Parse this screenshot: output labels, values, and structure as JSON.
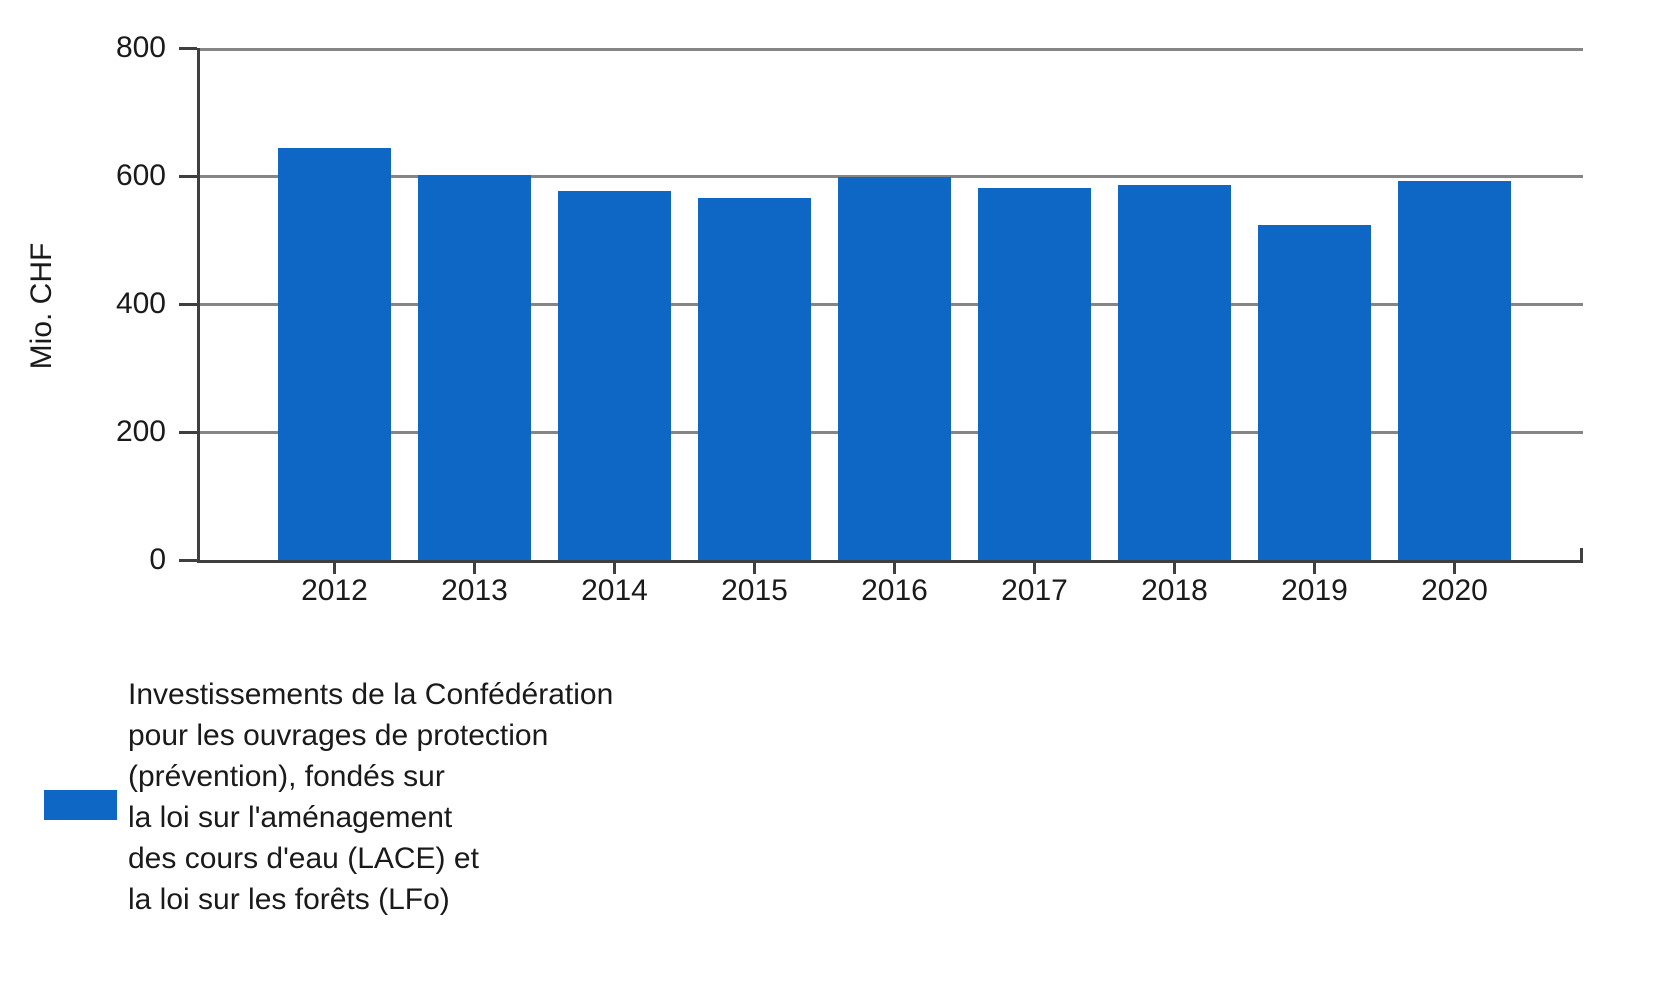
{
  "chart_data": {
    "type": "bar",
    "title": "",
    "xlabel": "",
    "ylabel": "Mio. CHF",
    "categories": [
      "2012",
      "2013",
      "2014",
      "2015",
      "2016",
      "2017",
      "2018",
      "2019",
      "2020"
    ],
    "values": [
      644,
      601,
      577,
      565,
      599,
      581,
      586,
      524,
      592
    ],
    "series": [
      {
        "name": "Investissements de la Confédération pour les ouvrages de protection (prévention), fondés sur la loi sur l'aménagement des cours d'eau (LACE) et la loi sur les forêts (LFo)",
        "values": [
          644,
          601,
          577,
          565,
          599,
          581,
          586,
          524,
          592
        ]
      }
    ],
    "ylim": [
      0,
      800
    ],
    "y_ticks": [
      0,
      200,
      400,
      600,
      800
    ],
    "grid": "horizontal",
    "legend_position": "bottom-left",
    "bar_color": "#0e66c5"
  },
  "legend": {
    "lines": [
      "Investissements de la Confédération",
      "pour les ouvrages de protection",
      "(prévention), fondés sur",
      "la loi sur l'aménagement",
      "des cours d'eau (LACE) et",
      "la loi sur les forêts (LFo)"
    ]
  },
  "colors": {
    "bar": "#0e66c5",
    "axis": "#3f3f3f",
    "grid": "#858585",
    "text": "#1a1a1a",
    "background": "#ffffff"
  }
}
